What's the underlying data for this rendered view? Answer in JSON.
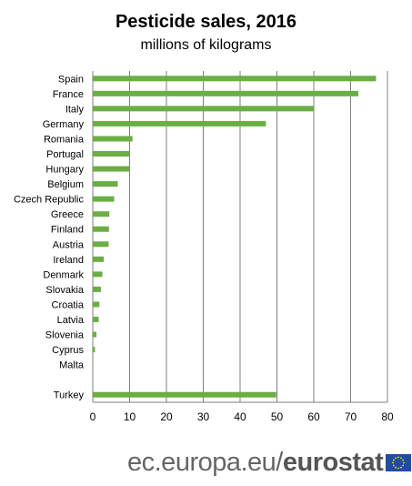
{
  "chart_data": {
    "type": "bar",
    "orientation": "horizontal",
    "title": "Pesticide sales, 2016",
    "subtitle": "millions of kilograms",
    "categories": [
      "Spain",
      "France",
      "Italy",
      "Germany",
      "Romania",
      "Portugal",
      "Hungary",
      "Belgium",
      "Czech Republic",
      "Greece",
      "Finland",
      "Austria",
      "Ireland",
      "Denmark",
      "Slovakia",
      "Croatia",
      "Latvia",
      "Slovenia",
      "Cyprus",
      "Malta",
      "",
      "Turkey"
    ],
    "values": [
      76.9,
      72.1,
      60.0,
      47.0,
      10.8,
      10.0,
      10.0,
      6.8,
      5.8,
      4.5,
      4.4,
      4.3,
      3.0,
      2.6,
      2.2,
      1.8,
      1.6,
      1.0,
      0.6,
      0.1,
      null,
      49.8
    ],
    "xticks": [
      0,
      10,
      20,
      30,
      40,
      50,
      60,
      70,
      80
    ],
    "xlim": [
      0,
      80
    ],
    "grid": "vertical",
    "bar_color": "#6aae44"
  },
  "footer": {
    "url": "ec.europa.eu/",
    "brand": "eurostat"
  },
  "colors": {
    "grid": "#7f7f7f",
    "flag_blue": "#1f4e9e",
    "flag_star": "#ffdd00"
  }
}
